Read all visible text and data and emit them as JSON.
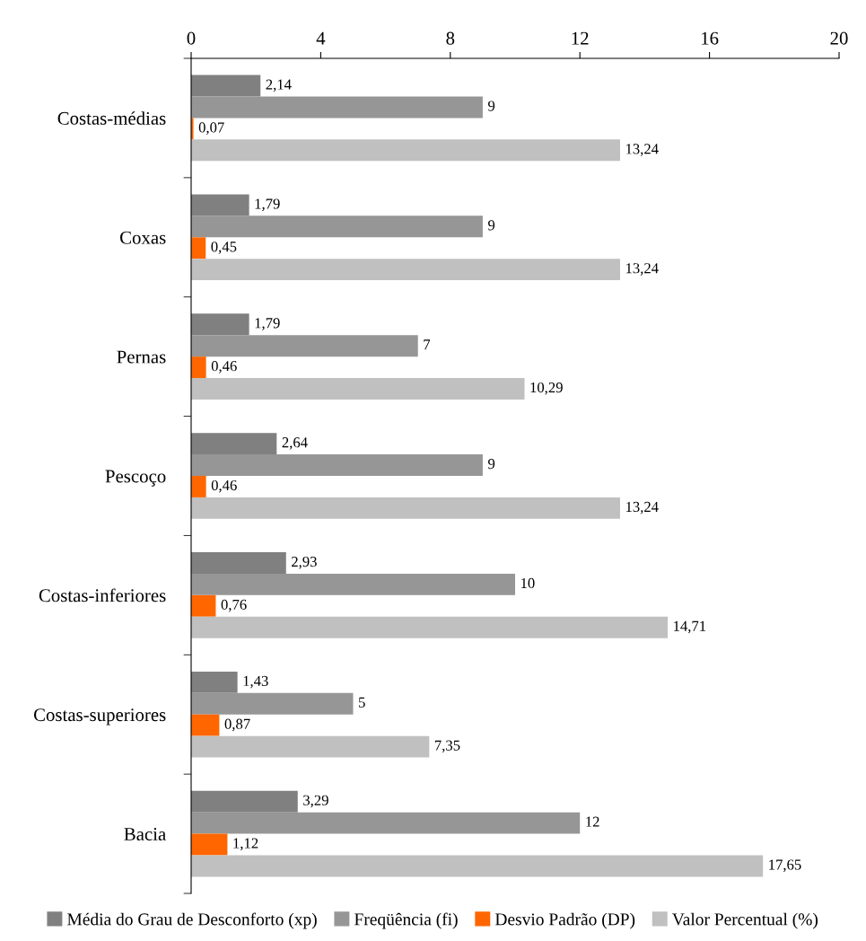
{
  "chart_data": {
    "type": "bar",
    "orientation": "horizontal",
    "categories": [
      "Costas-médias",
      "Coxas",
      "Pernas",
      "Pescoço",
      "Costas-inferiores",
      "Costas-superiores",
      "Bacia"
    ],
    "series": [
      {
        "name": "Média do Grau de Desconforto (xp)",
        "color": "#808080",
        "values": [
          2.14,
          1.79,
          1.79,
          2.64,
          2.93,
          1.43,
          3.29
        ],
        "value_labels": [
          "2,14",
          "1,79",
          "1,79",
          "2,64",
          "2,93",
          "1,43",
          "3,29"
        ]
      },
      {
        "name": "Freqüência (fi)",
        "color": "#969696",
        "values": [
          9,
          9,
          7,
          9,
          10,
          5,
          12
        ],
        "value_labels": [
          "9",
          "9",
          "7",
          "9",
          "10",
          "5",
          "12"
        ]
      },
      {
        "name": "Desvio Padrão (DP)",
        "color": "#ff6600",
        "values": [
          0.07,
          0.45,
          0.46,
          0.46,
          0.76,
          0.87,
          1.12
        ],
        "value_labels": [
          "0,07",
          "0,45",
          "0,46",
          "0,46",
          "0,76",
          "0,87",
          "1,12"
        ]
      },
      {
        "name": "Valor Percentual (%)",
        "color": "#c0c0c0",
        "values": [
          13.24,
          13.24,
          10.29,
          13.24,
          14.71,
          7.35,
          17.65
        ],
        "value_labels": [
          "13,24",
          "13,24",
          "10,29",
          "13,24",
          "14,71",
          "7,35",
          "17,65"
        ]
      }
    ],
    "xlim": [
      0,
      20
    ],
    "xticks": [
      0,
      4,
      8,
      12,
      16,
      20
    ],
    "grid": false,
    "legend": "bottom"
  }
}
